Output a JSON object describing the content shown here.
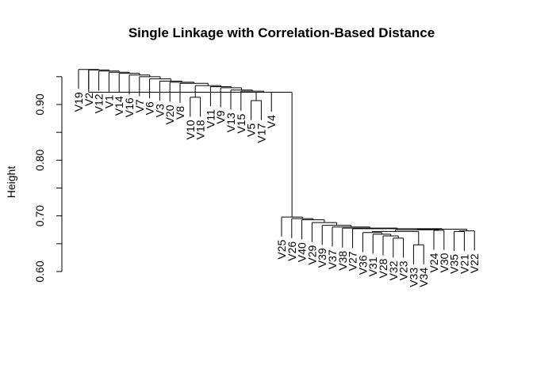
{
  "chart_data": {
    "type": "dendrogram",
    "title": "Single Linkage with Correlation-Based Distance",
    "ylabel": "Height",
    "xlabel": "",
    "ylim": [
      0.6,
      0.97
    ],
    "y_ticks": [
      0.6,
      0.7,
      0.8,
      0.9
    ],
    "y_tick_labels": [
      "0.60",
      "0.70",
      "0.80",
      "0.90"
    ],
    "leaves": [
      "V19",
      "V2",
      "V12",
      "V1",
      "V14",
      "V16",
      "V7",
      "V6",
      "V3",
      "V20",
      "V8",
      "V10",
      "V18",
      "V11",
      "V9",
      "V13",
      "V15",
      "V5",
      "V17",
      "V4",
      "V25",
      "V26",
      "V40",
      "V29",
      "V39",
      "V37",
      "V38",
      "V27",
      "V36",
      "V31",
      "V28",
      "V32",
      "V23",
      "V33",
      "V34",
      "V24",
      "V30",
      "V35",
      "V21",
      "V22"
    ],
    "merges": [
      {
        "left": "V10",
        "right": "V18",
        "height": 0.913
      },
      {
        "left": "V5",
        "right": "V17",
        "height": 0.907
      },
      {
        "left": "g2",
        "right": "V4",
        "height": 0.922
      },
      {
        "left": "V15",
        "right": "g3",
        "height": 0.924
      },
      {
        "left": "V13",
        "right": "g4",
        "height": 0.926
      },
      {
        "left": "V9",
        "right": "g5",
        "height": 0.93
      },
      {
        "left": "V11",
        "right": "g6",
        "height": 0.932
      },
      {
        "left": "g1",
        "right": "g7",
        "height": 0.934
      },
      {
        "left": "V8",
        "right": "g8",
        "height": 0.938
      },
      {
        "left": "V20",
        "right": "g9",
        "height": 0.94
      },
      {
        "left": "V3",
        "right": "g10",
        "height": 0.942
      },
      {
        "left": "V6",
        "right": "g11",
        "height": 0.946
      },
      {
        "left": "V7",
        "right": "g12",
        "height": 0.95
      },
      {
        "left": "V16",
        "right": "g13",
        "height": 0.953
      },
      {
        "left": "V14",
        "right": "g14",
        "height": 0.956
      },
      {
        "left": "V1",
        "right": "g15",
        "height": 0.958
      },
      {
        "left": "V12",
        "right": "g16",
        "height": 0.96
      },
      {
        "left": "V2",
        "right": "g17",
        "height": 0.962
      },
      {
        "left": "V19",
        "right": "g18",
        "height": 0.963
      },
      {
        "left": "V33",
        "right": "V34",
        "height": 0.648
      },
      {
        "left": "V32",
        "right": "V23",
        "height": 0.66
      },
      {
        "left": "V28",
        "right": "g21",
        "height": 0.664
      },
      {
        "left": "V31",
        "right": "g22",
        "height": 0.667
      },
      {
        "left": "V36",
        "right": "g23",
        "height": 0.67
      },
      {
        "left": "V35",
        "right": "V21",
        "height": 0.672
      },
      {
        "left": "g25",
        "right": "V22",
        "height": 0.673
      },
      {
        "left": "g24",
        "right": "g20",
        "height": 0.672
      },
      {
        "left": "V24",
        "right": "V30",
        "height": 0.674
      },
      {
        "left": "g27",
        "right": "g28",
        "height": 0.675
      },
      {
        "left": "g29",
        "right": "g26",
        "height": 0.676
      },
      {
        "left": "V27",
        "right": "g30",
        "height": 0.677
      },
      {
        "left": "V38",
        "right": "g31",
        "height": 0.678
      },
      {
        "left": "V37",
        "right": "g32",
        "height": 0.68
      },
      {
        "left": "V39",
        "right": "g33",
        "height": 0.683
      },
      {
        "left": "V29",
        "right": "g34",
        "height": 0.688
      },
      {
        "left": "V40",
        "right": "g35",
        "height": 0.693
      },
      {
        "left": "V26",
        "right": "g36",
        "height": 0.695
      },
      {
        "left": "V25",
        "right": "g37",
        "height": 0.698
      },
      {
        "left": "g19",
        "right": "g38",
        "height": 0.922
      }
    ]
  }
}
